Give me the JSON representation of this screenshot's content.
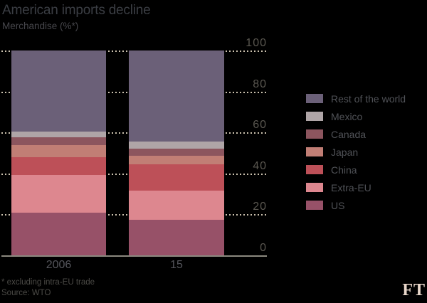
{
  "header": {
    "title": "American imports decline",
    "subtitle": "Merchandise (%*)"
  },
  "chart_data": {
    "type": "bar",
    "stacked": true,
    "stacked_to_100": true,
    "title": "American imports decline",
    "subtitle": "Merchandise (%*)",
    "categories": [
      "2006",
      "15"
    ],
    "series": [
      {
        "name": "US",
        "color": "#975168",
        "values": [
          20.8,
          17.5
        ]
      },
      {
        "name": "Extra-EU",
        "color": "#dd878f",
        "values": [
          18.5,
          14.2
        ]
      },
      {
        "name": "China",
        "color": "#bd5058",
        "values": [
          8.7,
          12.8
        ]
      },
      {
        "name": "Japan",
        "color": "#c17e75",
        "values": [
          5.9,
          4.2
        ]
      },
      {
        "name": "Canada",
        "color": "#8c555e",
        "values": [
          3.9,
          3.5
        ]
      },
      {
        "name": "Mexico",
        "color": "#afa5a7",
        "values": [
          2.7,
          3.5
        ]
      },
      {
        "name": "Rest of the world",
        "color": "#6b6078",
        "values": [
          39.5,
          44.3
        ]
      }
    ],
    "y_axis": {
      "ticks": [
        100,
        80,
        60,
        40,
        20,
        0
      ],
      "range": [
        0,
        100
      ]
    },
    "legend_order": [
      "Rest of the world",
      "Mexico",
      "Canada",
      "Japan",
      "China",
      "Extra-EU",
      "US"
    ],
    "legend_position": "right",
    "grid": "horizontal-dotted"
  },
  "footer": {
    "footnote": "* excluding intra-EU trade",
    "source": "Source: WTO",
    "logo": "FT"
  }
}
